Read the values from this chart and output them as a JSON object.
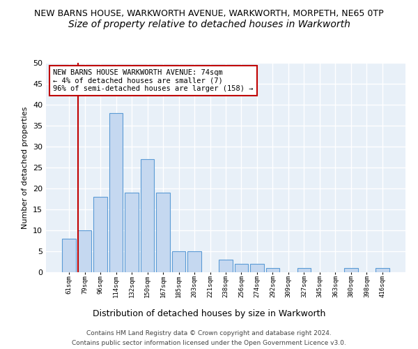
{
  "title1": "NEW BARNS HOUSE, WARKWORTH AVENUE, WARKWORTH, MORPETH, NE65 0TP",
  "title2": "Size of property relative to detached houses in Warkworth",
  "xlabel": "Distribution of detached houses by size in Warkworth",
  "ylabel": "Number of detached properties",
  "categories": [
    "61sqm",
    "79sqm",
    "96sqm",
    "114sqm",
    "132sqm",
    "150sqm",
    "167sqm",
    "185sqm",
    "203sqm",
    "221sqm",
    "238sqm",
    "256sqm",
    "274sqm",
    "292sqm",
    "309sqm",
    "327sqm",
    "345sqm",
    "363sqm",
    "380sqm",
    "398sqm",
    "416sqm"
  ],
  "values": [
    8,
    10,
    18,
    38,
    19,
    27,
    19,
    5,
    5,
    0,
    3,
    2,
    2,
    1,
    0,
    1,
    0,
    0,
    1,
    0,
    1
  ],
  "bar_color": "#c5d8f0",
  "bar_edge_color": "#5b9bd5",
  "highlight_index": 1,
  "highlight_color": "#c00000",
  "ylim": [
    0,
    50
  ],
  "yticks": [
    0,
    5,
    10,
    15,
    20,
    25,
    30,
    35,
    40,
    45,
    50
  ],
  "annotation_text": "NEW BARNS HOUSE WARKWORTH AVENUE: 74sqm\n← 4% of detached houses are smaller (7)\n96% of semi-detached houses are larger (158) →",
  "footer1": "Contains HM Land Registry data © Crown copyright and database right 2024.",
  "footer2": "Contains public sector information licensed under the Open Government Licence v3.0.",
  "bg_color": "#e8f0f8",
  "grid_color": "#ffffff",
  "title1_fontsize": 9.0,
  "title2_fontsize": 10.0
}
